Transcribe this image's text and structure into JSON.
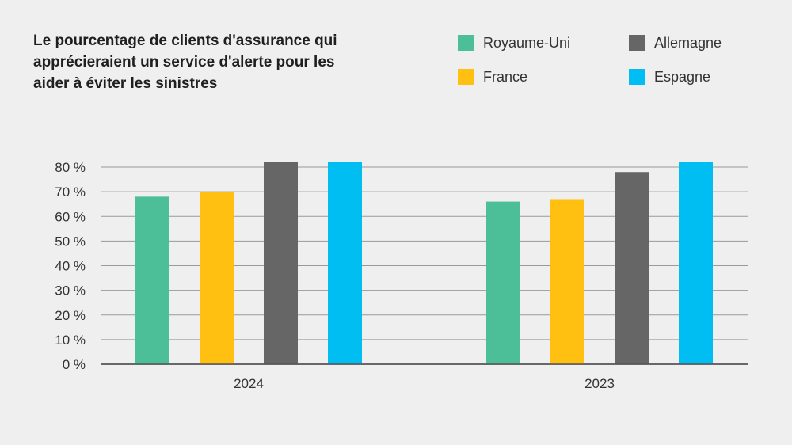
{
  "chart_data": {
    "type": "bar",
    "title_lines": [
      "Le pourcentage de clients d'assurance qui",
      "apprécieraient un service d'alerte pour les",
      "aider à éviter les sinistres"
    ],
    "categories": [
      "2024",
      "2023"
    ],
    "series": [
      {
        "name": "Royaume-Uni",
        "color": "#4cbf98",
        "values": [
          68,
          66
        ]
      },
      {
        "name": "France",
        "color": "#ffc012",
        "values": [
          70,
          67
        ]
      },
      {
        "name": "Allemagne",
        "color": "#666666",
        "values": [
          82,
          78
        ]
      },
      {
        "name": "Espagne",
        "color": "#00bdf2",
        "values": [
          82,
          82
        ]
      }
    ],
    "y_ticks": [
      "0 %",
      "10 %",
      "20 %",
      "30 %",
      "40 %",
      "50 %",
      "60 %",
      "70 %",
      "80 %"
    ],
    "ylim": [
      0,
      80
    ],
    "grid": true,
    "legend_position": "top-right"
  }
}
